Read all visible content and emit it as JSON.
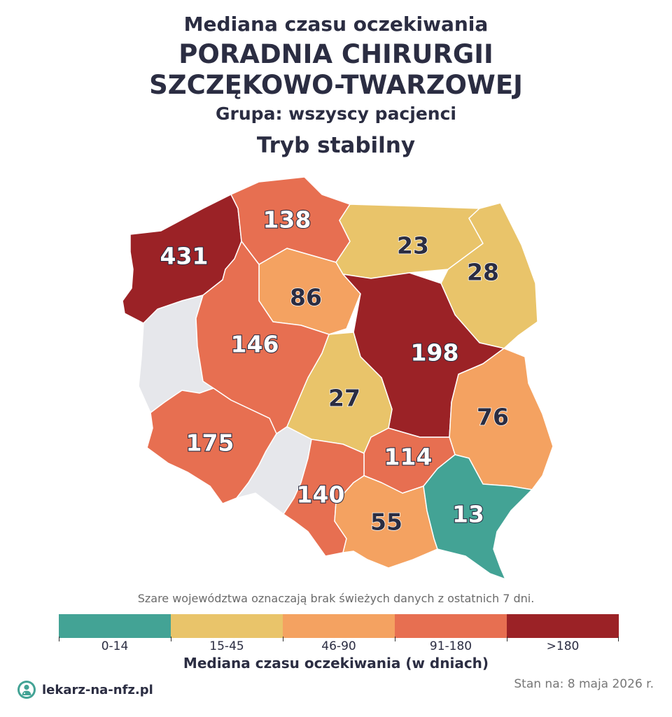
{
  "header": {
    "line1": "Mediana czasu oczekiwania",
    "line2": "PORADNIA CHIRURGII",
    "line3": "SZCZĘKOWO-TWARZOWEJ",
    "group": "Grupa: wszyscy pacjenci",
    "mode": "Tryb stabilny"
  },
  "regions": [
    {
      "name": "zachodniopomorskie",
      "value": "431",
      "color": "#9b2226"
    },
    {
      "name": "pomorskie",
      "value": "138",
      "color": "#e76f51"
    },
    {
      "name": "warmińsko-mazurskie",
      "value": "23",
      "color": "#e9c46a"
    },
    {
      "name": "podlaskie",
      "value": "28",
      "color": "#e9c46a"
    },
    {
      "name": "kujawsko-pomorskie",
      "value": "86",
      "color": "#f4a261"
    },
    {
      "name": "lubuskie",
      "value": "",
      "color": "#e6e7eb"
    },
    {
      "name": "wielkopolskie",
      "value": "146",
      "color": "#e76f51"
    },
    {
      "name": "mazowieckie",
      "value": "198",
      "color": "#9b2226"
    },
    {
      "name": "łódzkie",
      "value": "27",
      "color": "#e9c46a"
    },
    {
      "name": "lubelskie",
      "value": "76",
      "color": "#f4a261"
    },
    {
      "name": "dolnośląskie",
      "value": "175",
      "color": "#e76f51"
    },
    {
      "name": "opolskie",
      "value": "",
      "color": "#e6e7eb"
    },
    {
      "name": "świętokrzyskie",
      "value": "114",
      "color": "#e76f51"
    },
    {
      "name": "śląskie",
      "value": "140",
      "color": "#e76f51"
    },
    {
      "name": "małopolskie",
      "value": "55",
      "color": "#f4a261"
    },
    {
      "name": "podkarpackie",
      "value": "13",
      "color": "#43a395"
    }
  ],
  "note": "Szare województwa oznaczają brak świeżych danych z ostatnich 7 dni.",
  "legend": {
    "title": "Mediana czasu oczekiwania (w dniach)",
    "items": [
      {
        "label": "0-14",
        "color": "#43a395"
      },
      {
        "label": "15-45",
        "color": "#e9c46a"
      },
      {
        "label": "46-90",
        "color": "#f4a261"
      },
      {
        "label": "91-180",
        "color": "#e76f51"
      },
      {
        "label": ">180",
        "color": "#9b2226"
      }
    ]
  },
  "footer": {
    "brand": "lekarz-na-nfz.pl",
    "date": "Stan na: 8 maja 2026 r."
  }
}
